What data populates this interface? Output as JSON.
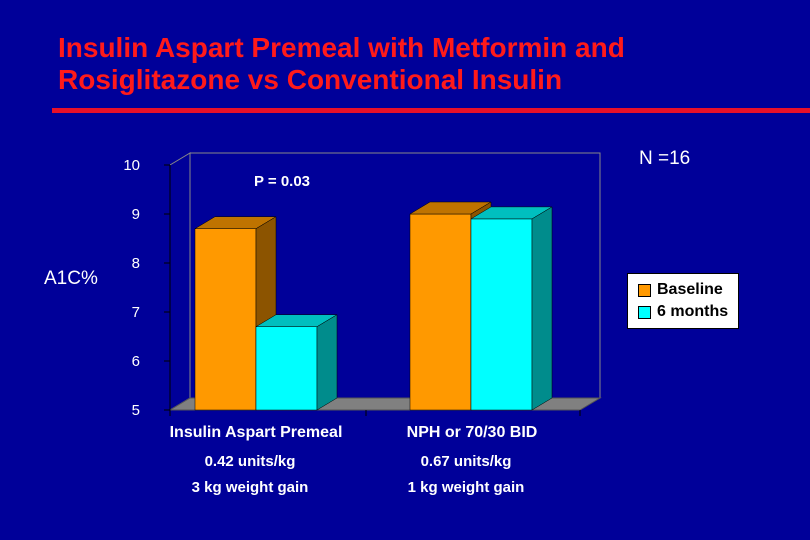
{
  "slide": {
    "title_line1": "Insulin Aspart Premeal with Metformin and",
    "title_line2": "Rosiglitazone vs Conventional Insulin",
    "n_label": "N =16",
    "colors": {
      "background": "#000099",
      "title": "#ff1a1a",
      "rule": "#e8102a"
    }
  },
  "chart_data": {
    "type": "bar",
    "ylabel": "A1C%",
    "ylim": [
      5,
      10
    ],
    "yticks": [
      5,
      6,
      7,
      8,
      9,
      10
    ],
    "categories": [
      "Insulin Aspart Premeal",
      "NPH or 70/30 BID"
    ],
    "category_sublabels": [
      [
        "0.42 units/kg",
        "3 kg weight gain"
      ],
      [
        "0.67 units/kg",
        "1 kg weight gain"
      ]
    ],
    "series": [
      {
        "name": "Baseline",
        "color": "#ff9900",
        "values": [
          8.7,
          9.0
        ]
      },
      {
        "name": "6 months",
        "color": "#00ffff",
        "values": [
          6.7,
          8.9
        ]
      }
    ],
    "annotations": [
      {
        "text": "P = 0.03"
      }
    ],
    "legend_position": "right",
    "grid": false,
    "style": "3d"
  }
}
